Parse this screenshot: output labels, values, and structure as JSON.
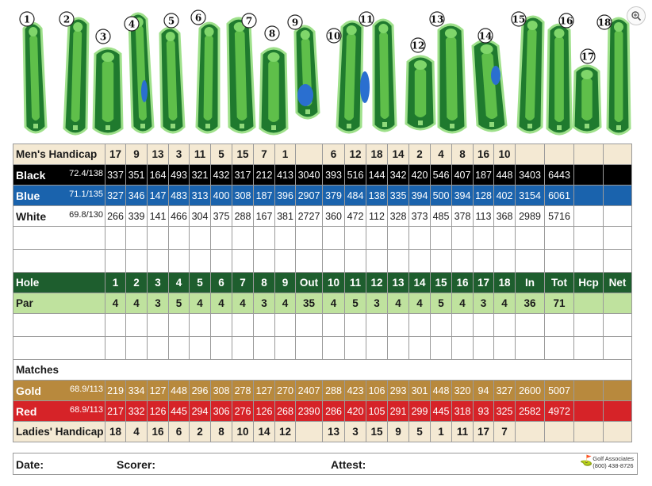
{
  "course": {
    "holes": [
      1,
      2,
      3,
      4,
      5,
      6,
      7,
      8,
      9,
      10,
      11,
      12,
      13,
      14,
      15,
      16,
      17,
      18
    ]
  },
  "men_handicap": {
    "label": "Men's Handicap",
    "front": [
      "17",
      "9",
      "13",
      "3",
      "11",
      "5",
      "15",
      "7",
      "1"
    ],
    "back": [
      "6",
      "12",
      "18",
      "14",
      "2",
      "4",
      "8",
      "16",
      "10"
    ]
  },
  "black": {
    "label": "Black",
    "rating": "72.4/138",
    "front": [
      "337",
      "351",
      "164",
      "493",
      "321",
      "432",
      "317",
      "212",
      "413"
    ],
    "out": "3040",
    "back": [
      "393",
      "516",
      "144",
      "342",
      "420",
      "546",
      "407",
      "187",
      "448"
    ],
    "in": "3403",
    "tot": "6443"
  },
  "blue": {
    "label": "Blue",
    "rating": "71.1/135",
    "front": [
      "327",
      "346",
      "147",
      "483",
      "313",
      "400",
      "308",
      "187",
      "396"
    ],
    "out": "2907",
    "back": [
      "379",
      "484",
      "138",
      "335",
      "394",
      "500",
      "394",
      "128",
      "402"
    ],
    "in": "3154",
    "tot": "6061"
  },
  "white": {
    "label": "White",
    "rating": "69.8/130",
    "front": [
      "266",
      "339",
      "141",
      "466",
      "304",
      "375",
      "288",
      "167",
      "381"
    ],
    "out": "2727",
    "back": [
      "360",
      "472",
      "112",
      "328",
      "373",
      "485",
      "378",
      "113",
      "368"
    ],
    "in": "2989",
    "tot": "5716"
  },
  "hole_row": {
    "label": "Hole",
    "front": [
      "1",
      "2",
      "3",
      "4",
      "5",
      "6",
      "7",
      "8",
      "9"
    ],
    "out": "Out",
    "back": [
      "10",
      "11",
      "12",
      "13",
      "14",
      "15",
      "16",
      "17",
      "18"
    ],
    "in": "In",
    "tot": "Tot",
    "hcp": "Hcp",
    "net": "Net"
  },
  "par": {
    "label": "Par",
    "front": [
      "4",
      "4",
      "3",
      "5",
      "4",
      "4",
      "4",
      "3",
      "4"
    ],
    "out": "35",
    "back": [
      "4",
      "5",
      "3",
      "4",
      "4",
      "5",
      "4",
      "3",
      "4"
    ],
    "in": "36",
    "tot": "71"
  },
  "matches": {
    "label": "Matches"
  },
  "gold": {
    "label": "Gold",
    "rating": "68.9/113",
    "front": [
      "219",
      "334",
      "127",
      "448",
      "296",
      "308",
      "278",
      "127",
      "270"
    ],
    "out": "2407",
    "back": [
      "288",
      "423",
      "106",
      "293",
      "301",
      "448",
      "320",
      "94",
      "327"
    ],
    "in": "2600",
    "tot": "5007"
  },
  "red": {
    "label": "Red",
    "rating": "68.9/113",
    "front": [
      "217",
      "332",
      "126",
      "445",
      "294",
      "306",
      "276",
      "126",
      "268"
    ],
    "out": "2390",
    "back": [
      "286",
      "420",
      "105",
      "291",
      "299",
      "445",
      "318",
      "93",
      "325"
    ],
    "in": "2582",
    "tot": "4972"
  },
  "ladies_handicap": {
    "label": "Ladies' Handicap",
    "front": [
      "18",
      "4",
      "16",
      "6",
      "2",
      "8",
      "10",
      "14",
      "12"
    ],
    "back": [
      "13",
      "3",
      "15",
      "9",
      "5",
      "1",
      "11",
      "17",
      "7"
    ]
  },
  "footer": {
    "date": "Date:",
    "scorer": "Scorer:",
    "attest": "Attest:",
    "logo_line1": "Golf Associates",
    "logo_line2": "(800) 438-8726"
  },
  "colors": {
    "tan": "#f4e9d3",
    "black": "#000000",
    "blue": "#1a63ad",
    "hole_green": "#1e5e2e",
    "par_green": "#bfe29e",
    "gold": "#b8893d",
    "red": "#d62328"
  },
  "icons": {
    "zoom": "zoom-in-icon"
  }
}
